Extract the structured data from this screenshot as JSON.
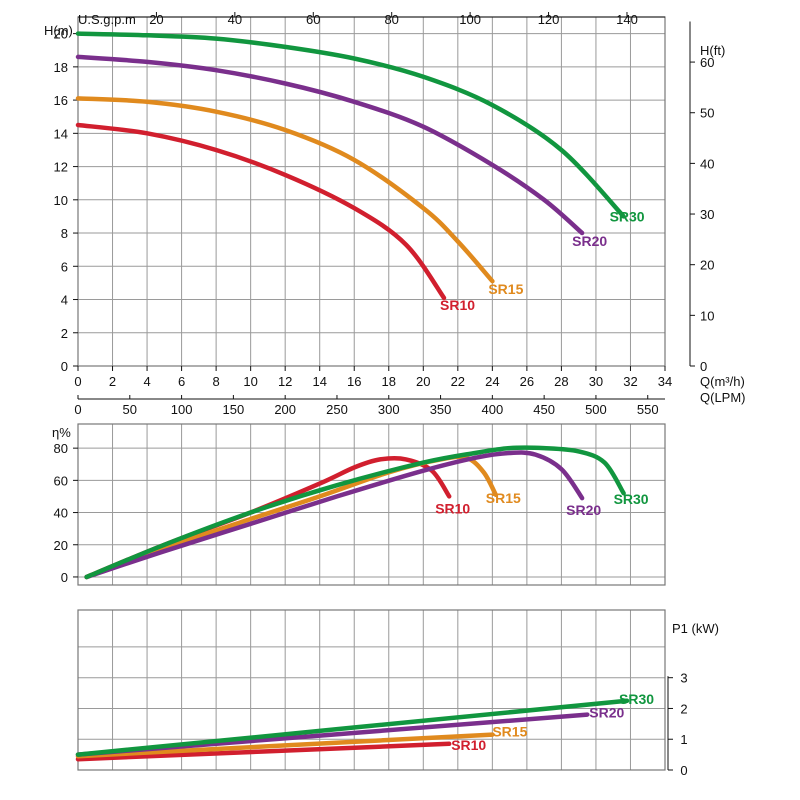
{
  "chart_data": [
    {
      "type": "line",
      "title": "",
      "ylabel": "H(m)",
      "ylabel_right": "H(ft)",
      "xlabel": "Q(m³/h)",
      "xlabel_lpm": "Q(LPM)",
      "xlabel_top": "U.S.g.p.m",
      "xlim": [
        0,
        34
      ],
      "ylim": [
        0,
        21
      ],
      "x_ticks": [
        0,
        2,
        4,
        6,
        8,
        10,
        12,
        14,
        16,
        18,
        20,
        22,
        24,
        26,
        28,
        30,
        32,
        34
      ],
      "y_ticks": [
        0,
        2,
        4,
        6,
        8,
        10,
        12,
        14,
        16,
        18,
        20
      ],
      "lpm_ticks": [
        0,
        50,
        100,
        150,
        200,
        250,
        300,
        350,
        400,
        450,
        500,
        550
      ],
      "gpm_ticks": [
        20,
        40,
        60,
        80,
        100,
        120,
        140
      ],
      "ft_ticks": [
        0,
        10,
        20,
        30,
        40,
        50,
        60
      ],
      "grid": true,
      "series": [
        {
          "name": "SR10",
          "color": "#d11f2e",
          "points": [
            [
              0,
              14.5
            ],
            [
              4,
              14.0
            ],
            [
              8,
              13.0
            ],
            [
              12,
              11.5
            ],
            [
              16,
              9.5
            ],
            [
              19,
              7.3
            ],
            [
              21.2,
              4.1
            ]
          ]
        },
        {
          "name": "SR15",
          "color": "#e08a1e",
          "points": [
            [
              0,
              16.1
            ],
            [
              4,
              15.9
            ],
            [
              8,
              15.3
            ],
            [
              12,
              14.2
            ],
            [
              16,
              12.4
            ],
            [
              20,
              9.5
            ],
            [
              22,
              7.5
            ],
            [
              24,
              5.1
            ]
          ]
        },
        {
          "name": "SR20",
          "color": "#7a2f8c",
          "points": [
            [
              0,
              18.6
            ],
            [
              4,
              18.3
            ],
            [
              8,
              17.8
            ],
            [
              12,
              17.0
            ],
            [
              16,
              15.9
            ],
            [
              20,
              14.4
            ],
            [
              24,
              12.1
            ],
            [
              27,
              10.0
            ],
            [
              29.2,
              8.0
            ]
          ]
        },
        {
          "name": "SR30",
          "color": "#11963f",
          "points": [
            [
              0,
              20.0
            ],
            [
              4,
              19.9
            ],
            [
              8,
              19.7
            ],
            [
              12,
              19.2
            ],
            [
              16,
              18.5
            ],
            [
              20,
              17.4
            ],
            [
              24,
              15.7
            ],
            [
              28,
              13.0
            ],
            [
              31.6,
              9.0
            ]
          ]
        }
      ]
    },
    {
      "type": "line",
      "title": "",
      "ylabel": "η%",
      "xlim": [
        0,
        34
      ],
      "ylim": [
        -5,
        95
      ],
      "y_ticks": [
        0,
        20,
        40,
        60,
        80
      ],
      "grid": true,
      "series": [
        {
          "name": "SR10",
          "color": "#d11f2e",
          "points": [
            [
              0.5,
              0
            ],
            [
              5,
              20
            ],
            [
              10,
              40
            ],
            [
              14,
              58
            ],
            [
              16,
              68
            ],
            [
              17.5,
              73
            ],
            [
              19,
              73
            ],
            [
              20.5,
              66
            ],
            [
              21.5,
              50
            ]
          ]
        },
        {
          "name": "SR15",
          "color": "#e08a1e",
          "points": [
            [
              0.5,
              0
            ],
            [
              5,
              18
            ],
            [
              10,
              36
            ],
            [
              14,
              50
            ],
            [
              18,
              65
            ],
            [
              21,
              73
            ],
            [
              22.5,
              74
            ],
            [
              23.5,
              65
            ],
            [
              24.2,
              51
            ]
          ]
        },
        {
          "name": "SR20",
          "color": "#7a2f8c",
          "points": [
            [
              0.5,
              0
            ],
            [
              5,
              16
            ],
            [
              10,
              33
            ],
            [
              15,
              50
            ],
            [
              20,
              66
            ],
            [
              23,
              74
            ],
            [
              25,
              77
            ],
            [
              26.5,
              76
            ],
            [
              28,
              67
            ],
            [
              29.2,
              49
            ]
          ]
        },
        {
          "name": "SR30",
          "color": "#11963f",
          "points": [
            [
              0.5,
              0
            ],
            [
              5,
              20
            ],
            [
              10,
              40
            ],
            [
              15,
              57
            ],
            [
              20,
              71
            ],
            [
              23,
              77
            ],
            [
              25,
              80
            ],
            [
              27,
              80
            ],
            [
              29,
              78
            ],
            [
              30.5,
              71
            ],
            [
              31.6,
              52
            ]
          ]
        }
      ]
    },
    {
      "type": "line",
      "title": "",
      "ylabel": "P1 (kW)",
      "xlim": [
        0,
        34
      ],
      "ylim": [
        0,
        5.2
      ],
      "y_ticks": [
        0,
        1,
        2,
        3
      ],
      "grid": true,
      "series": [
        {
          "name": "SR10",
          "color": "#d11f2e",
          "points": [
            [
              0,
              0.35
            ],
            [
              21.5,
              0.85
            ]
          ]
        },
        {
          "name": "SR15",
          "color": "#e08a1e",
          "points": [
            [
              0,
              0.45
            ],
            [
              24,
              1.15
            ]
          ]
        },
        {
          "name": "SR20",
          "color": "#7a2f8c",
          "points": [
            [
              0,
              0.5
            ],
            [
              29.5,
              1.8
            ]
          ]
        },
        {
          "name": "SR30",
          "color": "#11963f",
          "points": [
            [
              0,
              0.5
            ],
            [
              31.8,
              2.25
            ]
          ]
        }
      ]
    }
  ]
}
